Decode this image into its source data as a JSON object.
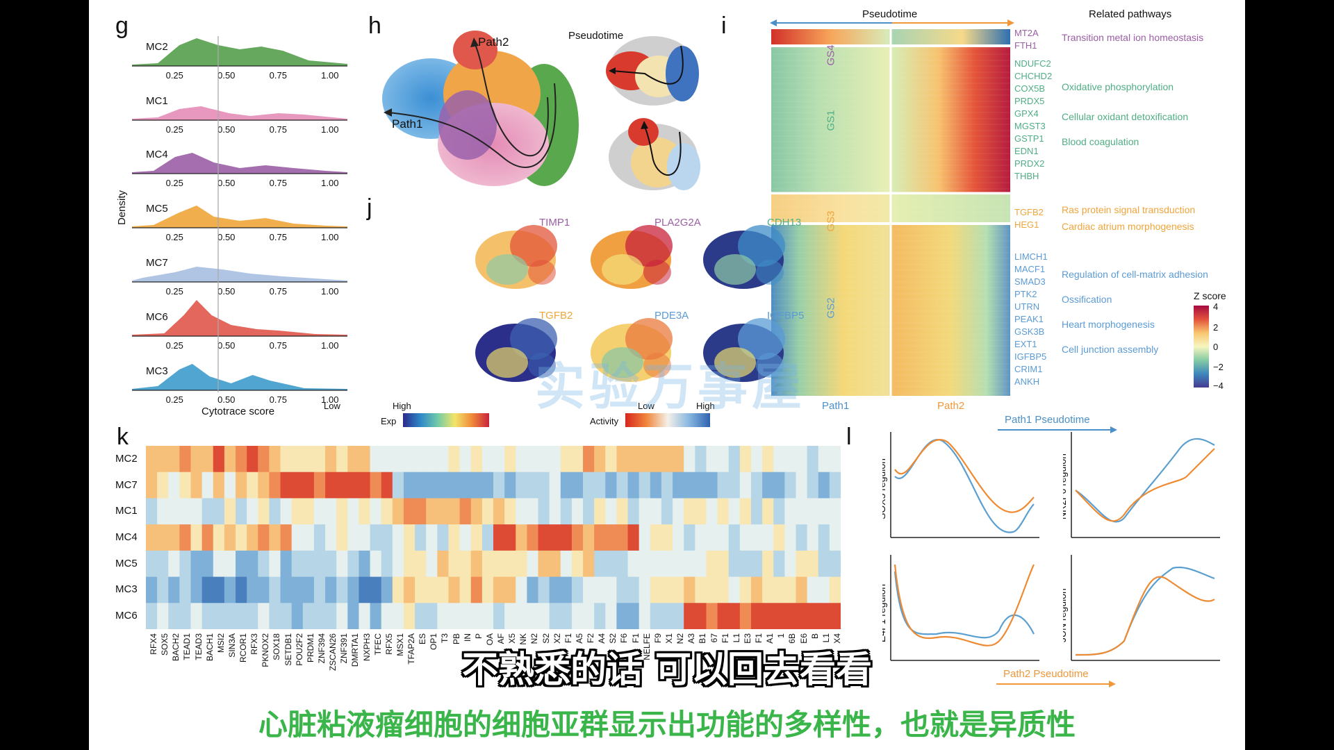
{
  "panels": {
    "g": "g",
    "h": "h",
    "i": "i",
    "j": "j",
    "k": "k",
    "l": "l"
  },
  "density": {
    "ylabel": "Density",
    "xlabel": "Cytotrace score",
    "ticks": [
      "0.25",
      "0.50",
      "0.75",
      "1.00"
    ],
    "rows": [
      {
        "name": "MC2",
        "color": "#55a04c"
      },
      {
        "name": "MC1",
        "color": "#e58db7"
      },
      {
        "name": "MC4",
        "color": "#9b5ea5"
      },
      {
        "name": "MC5",
        "color": "#f0a53a"
      },
      {
        "name": "MC7",
        "color": "#a7bee0"
      },
      {
        "name": "MC6",
        "color": "#e0574a"
      },
      {
        "name": "MC3",
        "color": "#3d9ccc"
      }
    ]
  },
  "umap": {
    "path1": "Path1",
    "path2": "Path2",
    "pseudotime": "Pseudotime"
  },
  "heatmap_i": {
    "top_label": "Pseudotime",
    "related": "Related pathways",
    "groups": [
      {
        "name": "GS4",
        "color": "#9b5ea5"
      },
      {
        "name": "GS1",
        "color": "#4fae84"
      },
      {
        "name": "GS3",
        "color": "#f0a53a"
      },
      {
        "name": "GS2",
        "color": "#5b9bd5"
      }
    ],
    "genes_gs4": [
      "MT2A",
      "FTH1"
    ],
    "genes_gs1": [
      "NDUFC2",
      "CHCHD2",
      "COX5B",
      "PRDX5",
      "GPX4",
      "MGST3",
      "GSTP1",
      "EDN1",
      "PRDX2",
      "THBH"
    ],
    "genes_gs3": [
      "TGFB2",
      "HEG1"
    ],
    "genes_gs2": [
      "LIMCH1",
      "MACF1",
      "SMAD3",
      "PTK2",
      "UTRN",
      "PEAK1",
      "GSK3B",
      "EXT1",
      "IGFBP5",
      "CRIM1",
      "ANKH"
    ],
    "pathways": [
      {
        "text": "Transition metal ion homeostasis",
        "color": "#9b5ea5"
      },
      {
        "text": "Oxidative phosphorylation",
        "color": "#4fae84"
      },
      {
        "text": "Cellular oxidant detoxification",
        "color": "#4fae84"
      },
      {
        "text": "Blood coagulation",
        "color": "#4fae84"
      },
      {
        "text": "Ras protein signal transduction",
        "color": "#f0a53a"
      },
      {
        "text": "Cardiac atrium morphogenesis",
        "color": "#f0a53a"
      },
      {
        "text": "Regulation of cell-matrix adhesion",
        "color": "#5b9bd5"
      },
      {
        "text": "Ossification",
        "color": "#5b9bd5"
      },
      {
        "text": "Heart morphogenesis",
        "color": "#5b9bd5"
      },
      {
        "text": "Cell junction assembly",
        "color": "#5b9bd5"
      }
    ],
    "path1": "Path1",
    "path2": "Path2",
    "zscore_title": "Z score",
    "zscore_ticks": [
      "4",
      "2",
      "0",
      "−2",
      "−4"
    ]
  },
  "feature_plots": [
    {
      "gene": "TIMP1",
      "color": "#9b5ea5"
    },
    {
      "gene": "PLA2G2A",
      "color": "#9b5ea5"
    },
    {
      "gene": "CDH13",
      "color": "#4fae84"
    },
    {
      "gene": "TGFB2",
      "color": "#f0a53a"
    },
    {
      "gene": "PDE3A",
      "color": "#5b9bd5"
    },
    {
      "gene": "IGFBP5",
      "color": "#5b9bd5"
    }
  ],
  "legends": {
    "exp": "Exp",
    "activity": "Activity",
    "low": "Low",
    "high": "High"
  },
  "heatmap_k": {
    "rows": [
      "MC2",
      "MC7",
      "MC1",
      "MC4",
      "MC5",
      "MC3",
      "MC6"
    ],
    "cols": [
      "RFX4",
      "SOX5",
      "BACH2",
      "TEAD1",
      "TEAD3",
      "BACH1",
      "MSI2",
      "SIN3A",
      "RCOR1",
      "RFX3",
      "PKNOX2",
      "SOX18",
      "SETDB1",
      "POU2F2",
      "PRDM1",
      "ZNF394",
      "ZSCAN26",
      "ZNF391",
      "DMRTA1",
      "NXPH3",
      "TFEC",
      "RFX5",
      "MSX1",
      "TFAP2A",
      "ES",
      "OP1",
      "T3",
      "PB",
      "IN",
      "P",
      "OA",
      "AF",
      "X5",
      "NK",
      "N2",
      "S2",
      "X2",
      "F1",
      "A5",
      "F2",
      "A4",
      "S2",
      "F6",
      "F1",
      "NELFE",
      "F9",
      "X1",
      "N2",
      "A3",
      "B1",
      "67",
      "F1",
      "L1",
      "E3",
      "F1",
      "A1",
      "1",
      "6B",
      "E6",
      "B",
      "L1",
      "X4"
    ]
  },
  "regulons": {
    "path1": "Path1 Pseudotime",
    "path2": "Path2 Pseudotime",
    "labels": [
      "SOX5 regulon",
      "NR2F6 regulon",
      "E4F1 regulon",
      "JUN regulon"
    ]
  },
  "subtitle": "不熟悉的话 可以回去看看",
  "caption": "心脏粘液瘤细胞的细胞亚群显示出功能的多样性，也就是异质性",
  "watermark": "实验万事屋"
}
